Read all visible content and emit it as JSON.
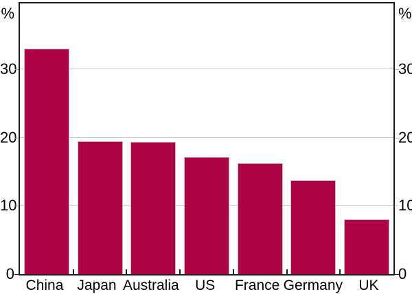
{
  "chart_data": {
    "type": "bar",
    "categories": [
      "China",
      "Japan",
      "Australia",
      "US",
      "France",
      "Germany",
      "UK"
    ],
    "values": [
      33.0,
      19.5,
      19.4,
      17.1,
      16.2,
      13.7,
      8.0
    ],
    "title": "",
    "xlabel": "",
    "ylabel": "%",
    "ylabel_left": "%",
    "ylabel_right": "%",
    "ylim": [
      0,
      39.6
    ],
    "yticks": [
      0,
      10,
      20,
      30
    ],
    "grid": true,
    "legend": "none",
    "bar_color": "#ad0243",
    "bar_border_color": "#bfbfbf",
    "gridline_color": "#c9c9c9",
    "axis_color": "#1c1c1c",
    "tick_color": "#b3b3b3",
    "text_color": "#000000"
  }
}
